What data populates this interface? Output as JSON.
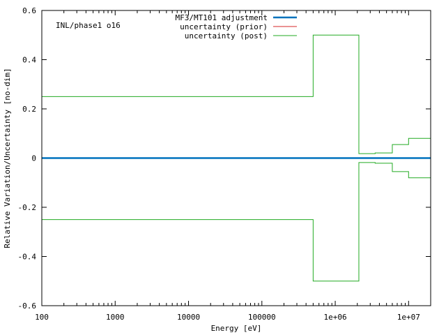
{
  "chart_data": {
    "type": "line",
    "annotation": "INL/phase1 o16",
    "xlabel": "Energy [eV]",
    "ylabel": "Relative Variation/Uncertainty [no-dim]",
    "xscale": "log",
    "xlim": [
      100,
      20000000
    ],
    "ylim": [
      -0.6,
      0.6
    ],
    "xticks": [
      {
        "value": 100,
        "label": "100"
      },
      {
        "value": 1000,
        "label": "1000"
      },
      {
        "value": 10000,
        "label": "10000"
      },
      {
        "value": 100000,
        "label": "100000"
      },
      {
        "value": 1000000,
        "label": "1e+06"
      },
      {
        "value": 10000000,
        "label": "1e+07"
      }
    ],
    "yticks": [
      {
        "value": 0.6,
        "label": "0.6"
      },
      {
        "value": 0.4,
        "label": "0.4"
      },
      {
        "value": 0.2,
        "label": "0.2"
      },
      {
        "value": 0,
        "label": "0"
      },
      {
        "value": -0.2,
        "label": "-0.2"
      },
      {
        "value": -0.4,
        "label": "-0.4"
      },
      {
        "value": -0.6,
        "label": "-0.6"
      }
    ],
    "legend_position": "top-center",
    "series": [
      {
        "name": "MF3/MT101 adjustment",
        "color": "#0072bd",
        "style": "line",
        "x": [
          100,
          20000000
        ],
        "y": [
          0,
          0
        ]
      },
      {
        "name": "uncertainty (prior)",
        "color": "#d62728",
        "style": "line",
        "x": [],
        "y": []
      },
      {
        "name": "uncertainty (post)",
        "color": "#22aa22",
        "style": "step-band",
        "bin_edges": [
          100,
          500000,
          2100000,
          3500000,
          6000000,
          10000000,
          20000000
        ],
        "values": [
          0.25,
          0.5,
          0.018,
          0.021,
          0.055,
          0.08
        ]
      }
    ]
  }
}
